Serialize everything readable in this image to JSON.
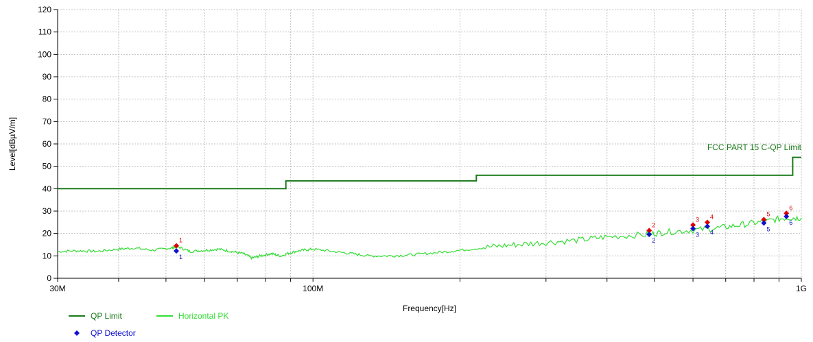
{
  "chart_data": {
    "type": "line",
    "xlabel": "Frequency[Hz]",
    "ylabel": "Level[dBµV/m]",
    "x_scale": "log",
    "xlim": [
      30000000,
      1000000000
    ],
    "ylim": [
      0,
      120
    ],
    "y_ticks": [
      "0",
      "10",
      "20",
      "30",
      "40",
      "50",
      "60",
      "70",
      "80",
      "90",
      "100",
      "110",
      "120"
    ],
    "x_tick_labels": [
      {
        "value": 30000000,
        "label": "30M"
      },
      {
        "value": 100000000,
        "label": "100M"
      },
      {
        "value": 1000000000,
        "label": "1G"
      }
    ],
    "x_minor_gridlines": [
      40000000,
      50000000,
      60000000,
      70000000,
      80000000,
      90000000,
      200000000,
      300000000,
      400000000,
      500000000,
      600000000,
      700000000,
      800000000,
      900000000
    ],
    "grid": true,
    "limit_label": "FCC PART 15 C-QP Limit",
    "series": [
      {
        "name": "QP Limit",
        "color": "#1a7a1a",
        "step": true,
        "points": [
          [
            30000000,
            40
          ],
          [
            88000000,
            40
          ],
          [
            88000000,
            43.5
          ],
          [
            216000000,
            43.5
          ],
          [
            216000000,
            46
          ],
          [
            960000000,
            46
          ],
          [
            960000000,
            54
          ],
          [
            1000000000,
            54
          ]
        ]
      },
      {
        "name": "Horizontal PK",
        "color": "#33dd33",
        "points": [
          [
            30000000,
            12
          ],
          [
            33000000,
            12.3
          ],
          [
            36000000,
            12
          ],
          [
            40000000,
            13
          ],
          [
            43000000,
            13.5
          ],
          [
            47000000,
            12.5
          ],
          [
            51000000,
            13.5
          ],
          [
            53000000,
            14
          ],
          [
            56000000,
            12
          ],
          [
            60000000,
            12.5
          ],
          [
            64000000,
            13
          ],
          [
            68000000,
            12
          ],
          [
            72000000,
            11
          ],
          [
            75000000,
            9
          ],
          [
            78000000,
            10
          ],
          [
            82000000,
            11
          ],
          [
            86000000,
            10
          ],
          [
            90000000,
            11.5
          ],
          [
            95000000,
            12.5
          ],
          [
            100000000,
            13
          ],
          [
            110000000,
            12
          ],
          [
            120000000,
            11
          ],
          [
            130000000,
            10
          ],
          [
            145000000,
            10
          ],
          [
            160000000,
            10.5
          ],
          [
            180000000,
            11.5
          ],
          [
            200000000,
            12.5
          ],
          [
            230000000,
            14
          ],
          [
            260000000,
            15
          ],
          [
            300000000,
            16
          ],
          [
            350000000,
            17
          ],
          [
            400000000,
            18.5
          ],
          [
            480000000,
            19.5
          ],
          [
            520000000,
            20.5
          ],
          [
            600000000,
            21.5
          ],
          [
            680000000,
            22.5
          ],
          [
            760000000,
            24
          ],
          [
            850000000,
            25.5
          ],
          [
            930000000,
            27
          ],
          [
            1000000000,
            27
          ]
        ]
      }
    ],
    "markers": [
      {
        "id": "1",
        "freq": 52500000,
        "peak": 14.5,
        "qp": 12.2
      },
      {
        "id": "2",
        "freq": 488000000,
        "peak": 21.3,
        "qp": 19.6
      },
      {
        "id": "3",
        "freq": 600000000,
        "peak": 23.8,
        "qp": 22.2
      },
      {
        "id": "4",
        "freq": 642000000,
        "peak": 25.0,
        "qp": 23.2
      },
      {
        "id": "5",
        "freq": 838000000,
        "peak": 26.2,
        "qp": 24.7
      },
      {
        "id": "6",
        "freq": 932000000,
        "peak": 29.0,
        "qp": 27.6
      }
    ],
    "peak_marker_color": "#dd0000",
    "qp_marker_color": "#1111cc",
    "legend": [
      {
        "label": "QP Limit",
        "color": "#1a7a1a",
        "kind": "line"
      },
      {
        "label": "Horizontal PK",
        "color": "#33dd33",
        "kind": "line"
      },
      {
        "label": "QP Detector",
        "color": "#1111cc",
        "kind": "diamond"
      }
    ]
  }
}
